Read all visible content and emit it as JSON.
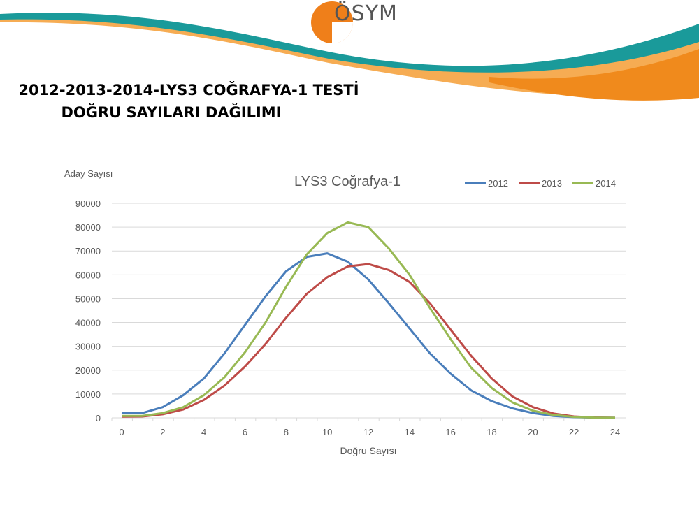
{
  "header": {
    "logo_text": "ÖSYM",
    "title_line1": "2012-2013-2014-LYS3 COĞRAFYA-1 TESTİ",
    "title_line2": "DOĞRU SAYILARI DAĞILIMI"
  },
  "colors": {
    "s2012": "#4a7ebb",
    "s2013": "#be4b48",
    "s2014": "#98b954",
    "orange": "#f08a1c",
    "teal": "#1a9a9a"
  },
  "chart_data": {
    "type": "line",
    "title": "LYS3 Coğrafya-1",
    "xlabel": "Doğru Sayısı",
    "ylabel": "Aday Sayısı",
    "xlim": [
      0,
      24
    ],
    "ylim": [
      0,
      90000
    ],
    "xticks": [
      "0",
      "2",
      "4",
      "6",
      "8",
      "10",
      "12",
      "14",
      "16",
      "18",
      "20",
      "22",
      "24"
    ],
    "yticks": [
      "0",
      "10000",
      "20000",
      "30000",
      "40000",
      "50000",
      "60000",
      "70000",
      "80000",
      "90000"
    ],
    "grid": true,
    "legend": "top-right",
    "x": [
      0,
      1,
      2,
      3,
      4,
      5,
      6,
      7,
      8,
      9,
      10,
      11,
      12,
      13,
      14,
      15,
      16,
      17,
      18,
      19,
      20,
      21,
      22,
      23,
      24
    ],
    "series": [
      {
        "name": "2012",
        "values": [
          2200,
          2000,
          4500,
          9500,
          16500,
          27000,
          39000,
          51000,
          61500,
          67500,
          69000,
          65500,
          58000,
          48000,
          37500,
          27000,
          18500,
          11500,
          7000,
          4000,
          2000,
          800,
          300,
          100,
          50
        ]
      },
      {
        "name": "2013",
        "values": [
          500,
          600,
          1500,
          3500,
          7500,
          13500,
          21500,
          31000,
          42000,
          52000,
          59000,
          63500,
          64500,
          62000,
          57000,
          48000,
          37000,
          26000,
          16500,
          9000,
          4500,
          1800,
          600,
          150,
          50
        ]
      },
      {
        "name": "2014",
        "values": [
          800,
          800,
          2000,
          4500,
          9500,
          17000,
          27500,
          40000,
          55000,
          68500,
          77500,
          82000,
          80000,
          71000,
          60000,
          46000,
          33000,
          21000,
          12500,
          6500,
          3000,
          1200,
          400,
          100,
          50
        ]
      }
    ]
  }
}
